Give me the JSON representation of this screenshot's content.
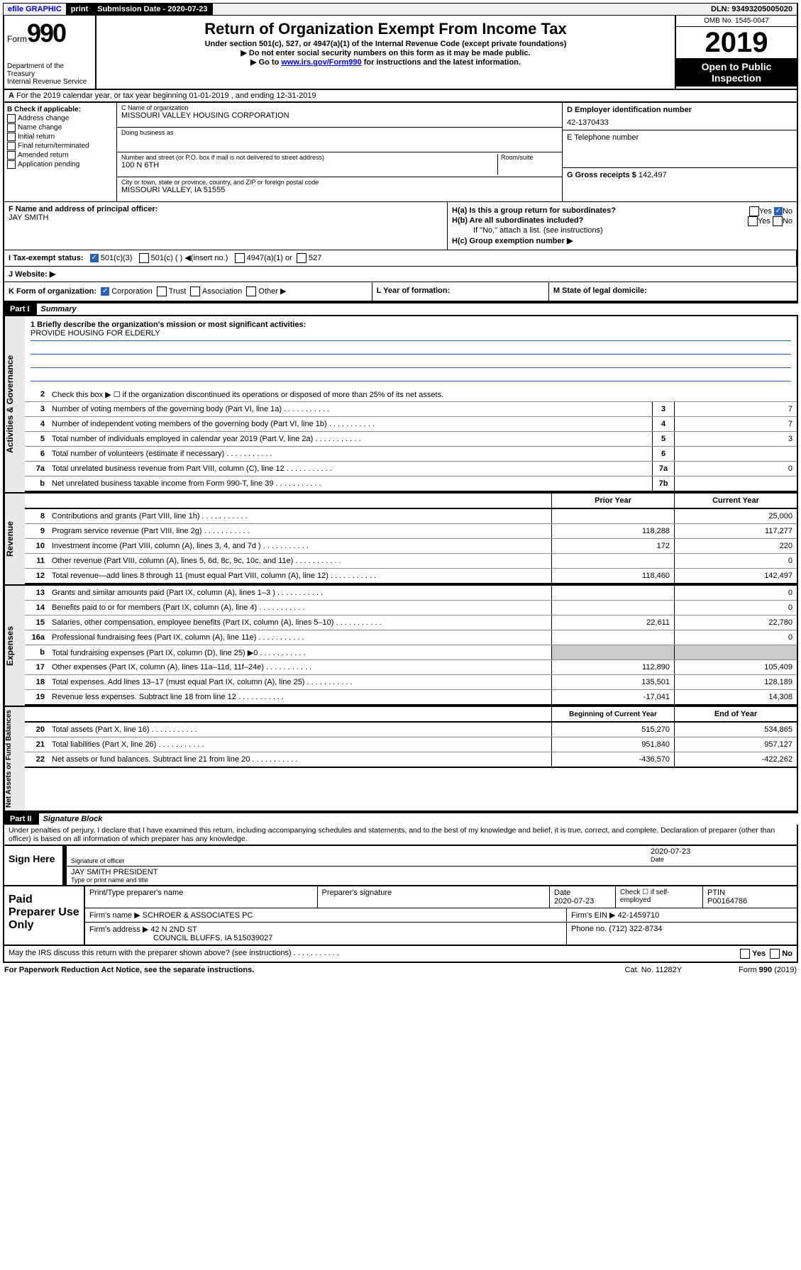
{
  "topbar": {
    "efile": "efile GRAPHIC",
    "print": "print",
    "sub_label": "Submission Date - 2020-07-23",
    "dln": "DLN: 93493205005020"
  },
  "header": {
    "form_label": "Form",
    "form_num": "990",
    "dept1": "Department of the Treasury",
    "dept2": "Internal Revenue Service",
    "title": "Return of Organization Exempt From Income Tax",
    "sub1": "Under section 501(c), 527, or 4947(a)(1) of the Internal Revenue Code (except private foundations)",
    "sub2": "Do not enter social security numbers on this form as it may be made public.",
    "sub3a": "Go to ",
    "sub3_link": "www.irs.gov/Form990",
    "sub3b": " for instructions and the latest information.",
    "omb": "OMB No. 1545-0047",
    "year": "2019",
    "open": "Open to Public Inspection"
  },
  "rowA": "For the 2019 calendar year, or tax year beginning 01-01-2019   , and ending 12-31-2019",
  "boxB": {
    "title": "B Check if applicable:",
    "opts": [
      "Address change",
      "Name change",
      "Initial return",
      "Final return/terminated",
      "Amended return",
      "Application pending"
    ]
  },
  "boxC": {
    "name_lbl": "C Name of organization",
    "name": "MISSOURI VALLEY HOUSING CORPORATION",
    "dba_lbl": "Doing business as",
    "addr_lbl": "Number and street (or P.O. box if mail is not delivered to street address)",
    "room_lbl": "Room/suite",
    "addr": "100 N 6TH",
    "city_lbl": "City or town, state or province, country, and ZIP or foreign postal code",
    "city": "MISSOURI VALLEY, IA  51555"
  },
  "boxD": {
    "lbl": "D Employer identification number",
    "val": "42-1370433"
  },
  "boxE": {
    "lbl": "E Telephone number"
  },
  "boxG": {
    "lbl": "G Gross receipts $",
    "val": "142,497"
  },
  "boxF": {
    "lbl": "F  Name and address of principal officer:",
    "val": "JAY SMITH"
  },
  "boxH": {
    "a": "H(a)  Is this a group return for subordinates?",
    "b": "H(b)  Are all subordinates included?",
    "note": "If \"No,\" attach a list. (see instructions)",
    "c": "H(c)  Group exemption number ▶",
    "yes": "Yes",
    "no": "No"
  },
  "rowI": {
    "lbl": "I   Tax-exempt status:",
    "o1": "501(c)(3)",
    "o2": "501(c) (  ) ◀(insert no.)",
    "o3": "4947(a)(1) or",
    "o4": "527"
  },
  "rowJ": "J   Website: ▶",
  "rowK": {
    "lbl": "K Form of organization:",
    "o1": "Corporation",
    "o2": "Trust",
    "o3": "Association",
    "o4": "Other ▶"
  },
  "rowL": "L Year of formation:",
  "rowM": "M State of legal domicile:",
  "partI": {
    "tag": "Part I",
    "title": "Summary"
  },
  "summary": {
    "l1_lbl": "1  Briefly describe the organization's mission or most significant activities:",
    "l1_val": "PROVIDE HOUSING FOR ELDERLY",
    "l2": "Check this box ▶ ☐  if the organization discontinued its operations or disposed of more than 25% of its net assets.",
    "lines_small": [
      {
        "n": "3",
        "d": "Number of voting members of the governing body (Part VI, line 1a)",
        "b": "3",
        "v": "7"
      },
      {
        "n": "4",
        "d": "Number of independent voting members of the governing body (Part VI, line 1b)",
        "b": "4",
        "v": "7"
      },
      {
        "n": "5",
        "d": "Total number of individuals employed in calendar year 2019 (Part V, line 2a)",
        "b": "5",
        "v": "3"
      },
      {
        "n": "6",
        "d": "Total number of volunteers (estimate if necessary)",
        "b": "6",
        "v": ""
      },
      {
        "n": "7a",
        "d": "Total unrelated business revenue from Part VIII, column (C), line 12",
        "b": "7a",
        "v": "0"
      },
      {
        "n": "b",
        "d": "Net unrelated business taxable income from Form 990-T, line 39",
        "b": "7b",
        "v": ""
      }
    ],
    "hdr_prior": "Prior Year",
    "hdr_curr": "Current Year",
    "revenue": [
      {
        "n": "8",
        "d": "Contributions and grants (Part VIII, line 1h)",
        "p": "",
        "c": "25,000"
      },
      {
        "n": "9",
        "d": "Program service revenue (Part VIII, line 2g)",
        "p": "118,288",
        "c": "117,277"
      },
      {
        "n": "10",
        "d": "Investment income (Part VIII, column (A), lines 3, 4, and 7d )",
        "p": "172",
        "c": "220"
      },
      {
        "n": "11",
        "d": "Other revenue (Part VIII, column (A), lines 5, 6d, 8c, 9c, 10c, and 11e)",
        "p": "",
        "c": "0"
      },
      {
        "n": "12",
        "d": "Total revenue—add lines 8 through 11 (must equal Part VIII, column (A), line 12)",
        "p": "118,460",
        "c": "142,497"
      }
    ],
    "expenses": [
      {
        "n": "13",
        "d": "Grants and similar amounts paid (Part IX, column (A), lines 1–3 )",
        "p": "",
        "c": "0"
      },
      {
        "n": "14",
        "d": "Benefits paid to or for members (Part IX, column (A), line 4)",
        "p": "",
        "c": "0"
      },
      {
        "n": "15",
        "d": "Salaries, other compensation, employee benefits (Part IX, column (A), lines 5–10)",
        "p": "22,611",
        "c": "22,780"
      },
      {
        "n": "16a",
        "d": "Professional fundraising fees (Part IX, column (A), line 11e)",
        "p": "",
        "c": "0"
      },
      {
        "n": "b",
        "d": "Total fundraising expenses (Part IX, column (D), line 25) ▶0",
        "p": "GRAY",
        "c": "GRAY"
      },
      {
        "n": "17",
        "d": "Other expenses (Part IX, column (A), lines 11a–11d, 11f–24e)",
        "p": "112,890",
        "c": "105,409"
      },
      {
        "n": "18",
        "d": "Total expenses. Add lines 13–17 (must equal Part IX, column (A), line 25)",
        "p": "135,501",
        "c": "128,189"
      },
      {
        "n": "19",
        "d": "Revenue less expenses. Subtract line 18 from line 12",
        "p": "-17,041",
        "c": "14,308"
      }
    ],
    "hdr_begin": "Beginning of Current Year",
    "hdr_end": "End of Year",
    "netassets": [
      {
        "n": "20",
        "d": "Total assets (Part X, line 16)",
        "p": "515,270",
        "c": "534,865"
      },
      {
        "n": "21",
        "d": "Total liabilities (Part X, line 26)",
        "p": "951,840",
        "c": "957,127"
      },
      {
        "n": "22",
        "d": "Net assets or fund balances. Subtract line 21 from line 20",
        "p": "-436,570",
        "c": "-422,262"
      }
    ]
  },
  "vtabs": {
    "gov": "Activities & Governance",
    "rev": "Revenue",
    "exp": "Expenses",
    "net": "Net Assets or Fund Balances"
  },
  "partII": {
    "tag": "Part II",
    "title": "Signature Block"
  },
  "perjury": "Under penalties of perjury, I declare that I have examined this return, including accompanying schedules and statements, and to the best of my knowledge and belief, it is true, correct, and complete. Declaration of preparer (other than officer) is based on all information of which preparer has any knowledge.",
  "sign": {
    "here": "Sign Here",
    "sig_lbl": "Signature of officer",
    "date": "2020-07-23",
    "date_lbl": "Date",
    "name": "JAY SMITH PRESIDENT",
    "name_lbl": "Type or print name and title"
  },
  "paid": {
    "title": "Paid Preparer Use Only",
    "h1": "Print/Type preparer's name",
    "h2": "Preparer's signature",
    "h3": "Date",
    "h3v": "2020-07-23",
    "h4": "Check ☐ if self-employed",
    "h5": "PTIN",
    "h5v": "P00164786",
    "firm_lbl": "Firm's name    ▶",
    "firm": "SCHROER & ASSOCIATES PC",
    "ein_lbl": "Firm's EIN ▶",
    "ein": "42-1459710",
    "addr_lbl": "Firm's address ▶",
    "addr1": "42 N 2ND ST",
    "addr2": "COUNCIL BLUFFS, IA  515039027",
    "phone_lbl": "Phone no.",
    "phone": "(712) 322-8734"
  },
  "discuss": "May the IRS discuss this return with the preparer shown above? (see instructions)",
  "footer": {
    "pra": "For Paperwork Reduction Act Notice, see the separate instructions.",
    "cat": "Cat. No. 11282Y",
    "form": "Form 990 (2019)"
  }
}
